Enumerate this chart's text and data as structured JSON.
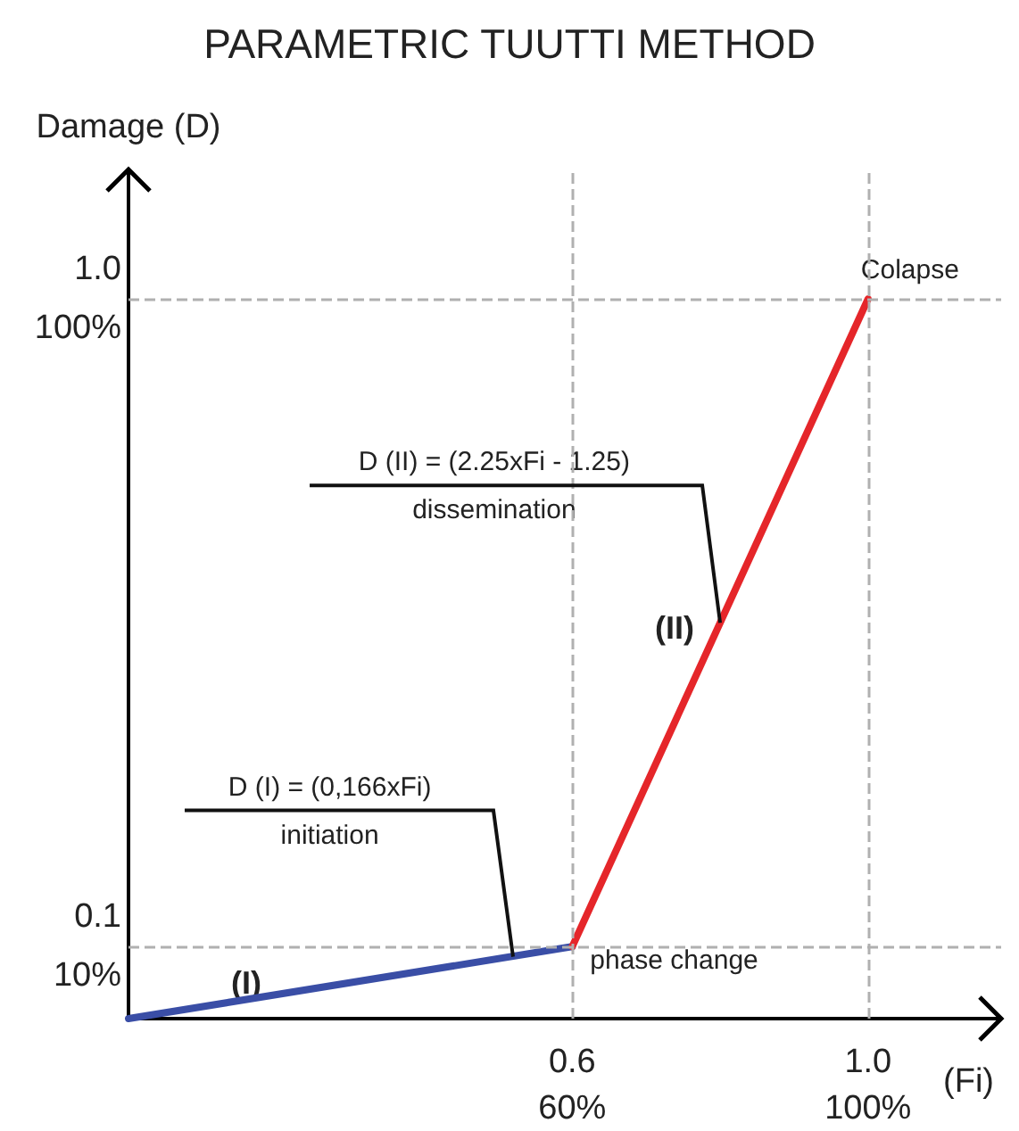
{
  "chart_data": {
    "type": "line",
    "title": "PARAMETRIC TUUTTI METHOD",
    "xlabel": "(Fi)",
    "ylabel": "Damage (D)",
    "series": [
      {
        "x": [
          0,
          0.6
        ],
        "values": [
          0,
          0.1
        ],
        "color": "#3a4ea6"
      },
      {
        "x": [
          0.6,
          1.0
        ],
        "values": [
          0.1,
          1.0
        ],
        "color": "#e5262a"
      }
    ],
    "xlim": [
      0,
      1.18
    ],
    "ylim": [
      0,
      1.18
    ],
    "xticks": [
      0.6,
      {
        "value": 1,
        "label": "1.0"
      }
    ],
    "yticks": [
      0.1,
      {
        "value": 1,
        "label": "1.0"
      }
    ],
    "x2lim": [
      0,
      118
    ],
    "x2ticks": [
      {
        "value": 60,
        "label": "60%"
      },
      {
        "value": 100,
        "label": "100%"
      }
    ],
    "y2lim": [
      0,
      118
    ],
    "y2ticks": [
      {
        "value": 10,
        "label": "10%"
      },
      {
        "value": 100,
        "label": "100%"
      }
    ],
    "ref_lines": [
      {
        "axis": "y",
        "value": 1.0,
        "color": "#b0b0b0",
        "line_style": "dashed"
      },
      {
        "axis": "y",
        "value": 0.1,
        "color": "#b0b0b0",
        "line_style": "dashed"
      },
      {
        "axis": "x",
        "value": 0.6,
        "color": "#b0b0b0",
        "line_style": "dashed"
      },
      {
        "axis": "x",
        "value": 1.0,
        "color": "#b0b0b0",
        "line_style": "dashed"
      }
    ],
    "annotations": [
      {
        "text": "Colapse",
        "x": 1.0,
        "y": 1.0
      },
      {
        "text": "phase change",
        "x": 0.6,
        "y": 0.1
      },
      "(I)",
      "(II)",
      {
        "text": "D (I) = (0,166xFi)\ninitiation",
        "x": 0.52,
        "y": 0.086
      },
      {
        "text": "D (II) = (2.25xFi - 1.25)\ndissemination",
        "x": 0.8,
        "y": 0.55
      }
    ],
    "grid": false,
    "marker": "none",
    "line_style": "solid"
  }
}
